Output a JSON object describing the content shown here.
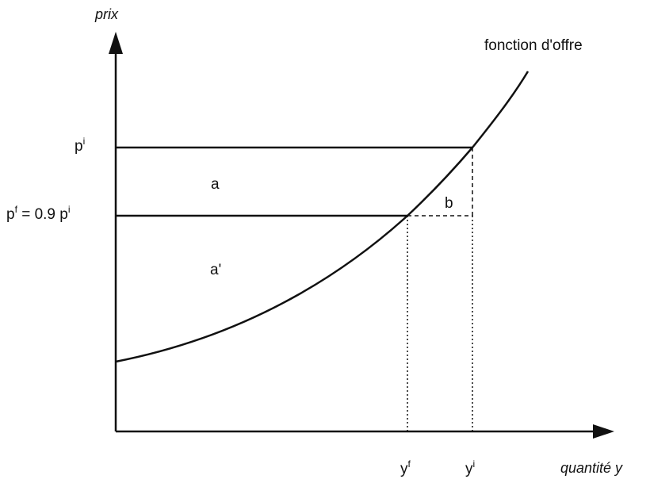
{
  "axes": {
    "y_label": "prix",
    "x_label": "quantité y"
  },
  "curve": {
    "label": "fonction d'offre"
  },
  "price_levels": {
    "initial": {
      "base": "p",
      "sup": "i"
    },
    "final": {
      "base": "p",
      "sup": "f",
      "suffix_pre": " = 0.9 p",
      "suffix_sup": "i"
    }
  },
  "quantity_levels": {
    "final": {
      "base": "y",
      "sup": "f"
    },
    "initial": {
      "base": "y",
      "sup": "i"
    }
  },
  "regions": {
    "a": "a",
    "a_prime": "a'",
    "b": "b"
  },
  "colors": {
    "ink": "#111111",
    "background": "#ffffff"
  }
}
